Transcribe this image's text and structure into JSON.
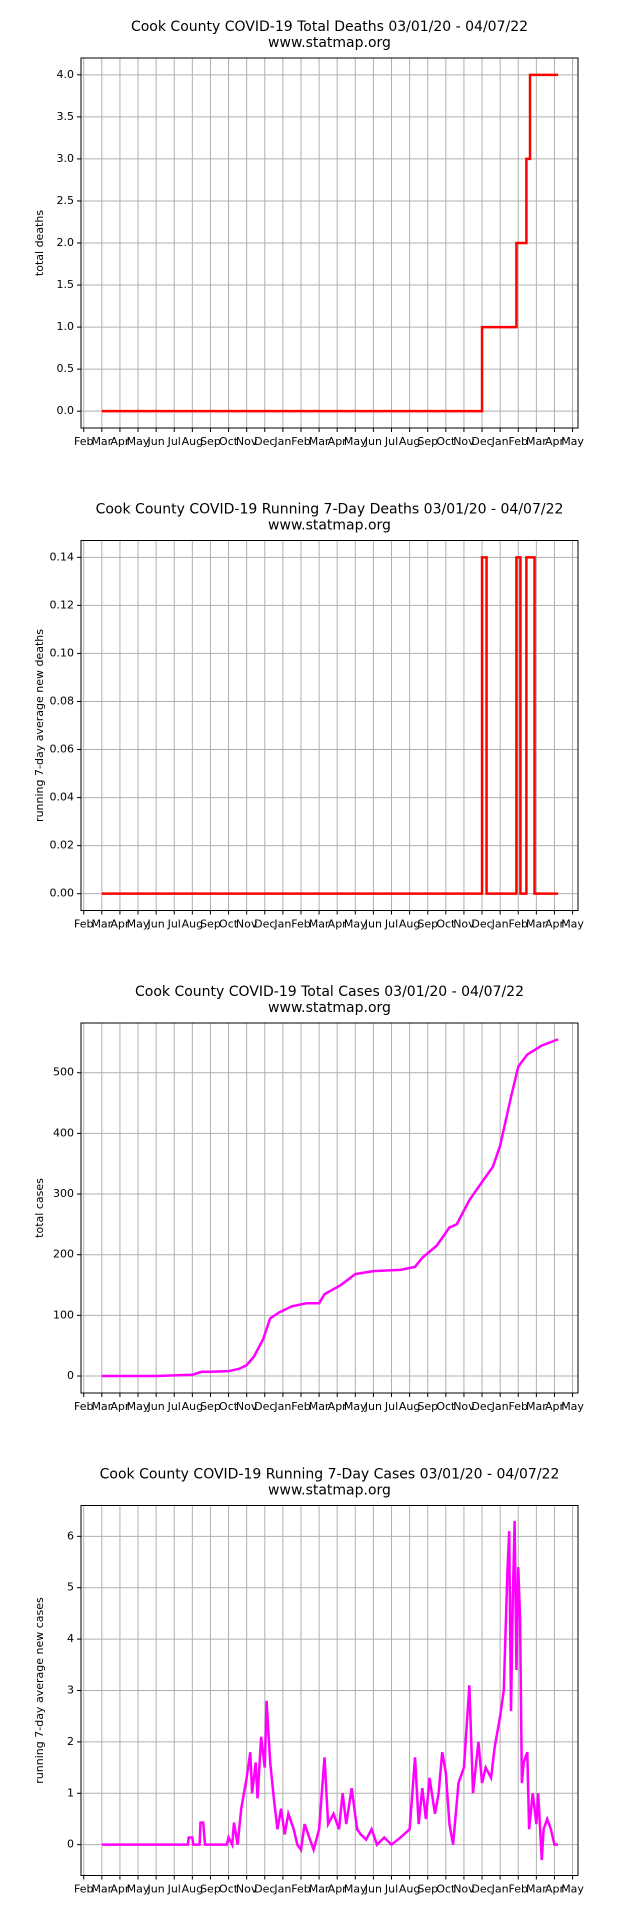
{
  "chart_data": [
    {
      "type": "line",
      "title": "Cook County COVID-19 Total Deaths 03/01/20 - 04/07/22",
      "subtitle": "www.statmap.org",
      "y_label": "total deaths",
      "grid": true,
      "xlim": [
        -0.15,
        27.3
      ],
      "xticks": [
        {
          "value": 0,
          "label": "Feb"
        },
        {
          "value": 1,
          "label": "Mar"
        },
        {
          "value": 2,
          "label": "Apr"
        },
        {
          "value": 3,
          "label": "May"
        },
        {
          "value": 4,
          "label": "Jun"
        },
        {
          "value": 5,
          "label": "Jul"
        },
        {
          "value": 6,
          "label": "Aug"
        },
        {
          "value": 7,
          "label": "Sep"
        },
        {
          "value": 8,
          "label": "Oct"
        },
        {
          "value": 9,
          "label": "Nov"
        },
        {
          "value": 10,
          "label": "Dec"
        },
        {
          "value": 11,
          "label": "Jan"
        },
        {
          "value": 12,
          "label": "Feb"
        },
        {
          "value": 13,
          "label": "Mar"
        },
        {
          "value": 14,
          "label": "Apr"
        },
        {
          "value": 15,
          "label": "May"
        },
        {
          "value": 16,
          "label": "Jun"
        },
        {
          "value": 17,
          "label": "Jul"
        },
        {
          "value": 18,
          "label": "Aug"
        },
        {
          "value": 19,
          "label": "Sep"
        },
        {
          "value": 20,
          "label": "Oct"
        },
        {
          "value": 21,
          "label": "Nov"
        },
        {
          "value": 22,
          "label": "Dec"
        },
        {
          "value": 23,
          "label": "Jan"
        },
        {
          "value": 24,
          "label": "Feb"
        },
        {
          "value": 25,
          "label": "Mar"
        },
        {
          "value": 26,
          "label": "Apr"
        },
        {
          "value": 27,
          "label": "May"
        }
      ],
      "ylim": [
        -0.2,
        4.2
      ],
      "yticks": [
        {
          "value": 0,
          "label": "0.0"
        },
        {
          "value": 0.5,
          "label": "0.5"
        },
        {
          "value": 1,
          "label": "1.0"
        },
        {
          "value": 1.5,
          "label": "1.5"
        },
        {
          "value": 2,
          "label": "2.0"
        },
        {
          "value": 2.5,
          "label": "2.5"
        },
        {
          "value": 3,
          "label": "3.0"
        },
        {
          "value": 3.5,
          "label": "3.5"
        },
        {
          "value": 4,
          "label": "4.0"
        }
      ],
      "series": [
        {
          "color": "#ff0000",
          "x": [
            1,
            22.0,
            22.0,
            23.9,
            23.9,
            24.45,
            24.45,
            24.65,
            24.65,
            26.2
          ],
          "values": [
            0,
            0,
            1,
            1,
            2,
            2,
            3,
            3,
            4,
            4
          ]
        }
      ]
    },
    {
      "type": "line",
      "title": "Cook County COVID-19 Running 7-Day Deaths 03/01/20 - 04/07/22",
      "subtitle": "www.statmap.org",
      "y_label": "running 7-day average new deaths",
      "grid": true,
      "xlim": [
        -0.15,
        27.3
      ],
      "xticks": [
        {
          "value": 0,
          "label": "Feb"
        },
        {
          "value": 1,
          "label": "Mar"
        },
        {
          "value": 2,
          "label": "Apr"
        },
        {
          "value": 3,
          "label": "May"
        },
        {
          "value": 4,
          "label": "Jun"
        },
        {
          "value": 5,
          "label": "Jul"
        },
        {
          "value": 6,
          "label": "Aug"
        },
        {
          "value": 7,
          "label": "Sep"
        },
        {
          "value": 8,
          "label": "Oct"
        },
        {
          "value": 9,
          "label": "Nov"
        },
        {
          "value": 10,
          "label": "Dec"
        },
        {
          "value": 11,
          "label": "Jan"
        },
        {
          "value": 12,
          "label": "Feb"
        },
        {
          "value": 13,
          "label": "Mar"
        },
        {
          "value": 14,
          "label": "Apr"
        },
        {
          "value": 15,
          "label": "May"
        },
        {
          "value": 16,
          "label": "Jun"
        },
        {
          "value": 17,
          "label": "Jul"
        },
        {
          "value": 18,
          "label": "Aug"
        },
        {
          "value": 19,
          "label": "Sep"
        },
        {
          "value": 20,
          "label": "Oct"
        },
        {
          "value": 21,
          "label": "Nov"
        },
        {
          "value": 22,
          "label": "Dec"
        },
        {
          "value": 23,
          "label": "Jan"
        },
        {
          "value": 24,
          "label": "Feb"
        },
        {
          "value": 25,
          "label": "Mar"
        },
        {
          "value": 26,
          "label": "Apr"
        },
        {
          "value": 27,
          "label": "May"
        }
      ],
      "ylim": [
        -0.007,
        0.147
      ],
      "yticks": [
        {
          "value": 0,
          "label": "0.00"
        },
        {
          "value": 0.02,
          "label": "0.02"
        },
        {
          "value": 0.04,
          "label": "0.04"
        },
        {
          "value": 0.06,
          "label": "0.06"
        },
        {
          "value": 0.08,
          "label": "0.08"
        },
        {
          "value": 0.1,
          "label": "0.10"
        },
        {
          "value": 0.12,
          "label": "0.12"
        },
        {
          "value": 0.14,
          "label": "0.14"
        }
      ],
      "series": [
        {
          "color": "#ff0000",
          "x": [
            1,
            22.0,
            22.0,
            22.25,
            22.25,
            23.9,
            23.9,
            24.12,
            24.12,
            24.45,
            24.45,
            24.9,
            24.9,
            26.2
          ],
          "values": [
            0,
            0,
            0.14,
            0.14,
            0,
            0,
            0.14,
            0.14,
            0,
            0,
            0.14,
            0.14,
            0,
            0
          ]
        }
      ]
    },
    {
      "type": "line",
      "title": "Cook County COVID-19 Total Cases 03/01/20 - 04/07/22",
      "subtitle": "www.statmap.org",
      "y_label": "total cases",
      "grid": true,
      "xlim": [
        -0.15,
        27.3
      ],
      "xticks": [
        {
          "value": 0,
          "label": "Feb"
        },
        {
          "value": 1,
          "label": "Mar"
        },
        {
          "value": 2,
          "label": "Apr"
        },
        {
          "value": 3,
          "label": "May"
        },
        {
          "value": 4,
          "label": "Jun"
        },
        {
          "value": 5,
          "label": "Jul"
        },
        {
          "value": 6,
          "label": "Aug"
        },
        {
          "value": 7,
          "label": "Sep"
        },
        {
          "value": 8,
          "label": "Oct"
        },
        {
          "value": 9,
          "label": "Nov"
        },
        {
          "value": 10,
          "label": "Dec"
        },
        {
          "value": 11,
          "label": "Jan"
        },
        {
          "value": 12,
          "label": "Feb"
        },
        {
          "value": 13,
          "label": "Mar"
        },
        {
          "value": 14,
          "label": "Apr"
        },
        {
          "value": 15,
          "label": "May"
        },
        {
          "value": 16,
          "label": "Jun"
        },
        {
          "value": 17,
          "label": "Jul"
        },
        {
          "value": 18,
          "label": "Aug"
        },
        {
          "value": 19,
          "label": "Sep"
        },
        {
          "value": 20,
          "label": "Oct"
        },
        {
          "value": 21,
          "label": "Nov"
        },
        {
          "value": 22,
          "label": "Dec"
        },
        {
          "value": 23,
          "label": "Jan"
        },
        {
          "value": 24,
          "label": "Feb"
        },
        {
          "value": 25,
          "label": "Mar"
        },
        {
          "value": 26,
          "label": "Apr"
        },
        {
          "value": 27,
          "label": "May"
        }
      ],
      "ylim": [
        -28,
        582
      ],
      "yticks": [
        0,
        100,
        200,
        300,
        400,
        500
      ],
      "series": [
        {
          "color": "#ff00ff",
          "x": [
            1,
            4,
            5,
            6,
            6.5,
            7,
            8,
            8.6,
            9,
            9.4,
            9.9,
            10.3,
            10.8,
            11.5,
            12.3,
            13,
            13.3,
            14.2,
            15,
            16,
            17.5,
            18.3,
            18.7,
            19.5,
            20.2,
            20.6,
            21.3,
            22,
            22.6,
            23,
            23.3,
            23.6,
            24,
            24.5,
            25.3,
            26.2
          ],
          "values": [
            0,
            0,
            1,
            2,
            7,
            7,
            8,
            12,
            18,
            32,
            60,
            95,
            105,
            115,
            120,
            120,
            135,
            150,
            168,
            173,
            175,
            180,
            195,
            215,
            245,
            250,
            290,
            320,
            345,
            380,
            420,
            460,
            510,
            530,
            545,
            555
          ]
        }
      ]
    },
    {
      "type": "line",
      "title": "Cook County COVID-19 Running 7-Day Cases 03/01/20 - 04/07/22",
      "subtitle": "www.statmap.org",
      "y_label": "running 7-day average new cases",
      "grid": true,
      "xlim": [
        -0.15,
        27.3
      ],
      "xticks": [
        {
          "value": 0,
          "label": "Feb"
        },
        {
          "value": 1,
          "label": "Mar"
        },
        {
          "value": 2,
          "label": "Apr"
        },
        {
          "value": 3,
          "label": "May"
        },
        {
          "value": 4,
          "label": "Jun"
        },
        {
          "value": 5,
          "label": "Jul"
        },
        {
          "value": 6,
          "label": "Aug"
        },
        {
          "value": 7,
          "label": "Sep"
        },
        {
          "value": 8,
          "label": "Oct"
        },
        {
          "value": 9,
          "label": "Nov"
        },
        {
          "value": 10,
          "label": "Dec"
        },
        {
          "value": 11,
          "label": "Jan"
        },
        {
          "value": 12,
          "label": "Feb"
        },
        {
          "value": 13,
          "label": "Mar"
        },
        {
          "value": 14,
          "label": "Apr"
        },
        {
          "value": 15,
          "label": "May"
        },
        {
          "value": 16,
          "label": "Jun"
        },
        {
          "value": 17,
          "label": "Jul"
        },
        {
          "value": 18,
          "label": "Aug"
        },
        {
          "value": 19,
          "label": "Sep"
        },
        {
          "value": 20,
          "label": "Oct"
        },
        {
          "value": 21,
          "label": "Nov"
        },
        {
          "value": 22,
          "label": "Dec"
        },
        {
          "value": 23,
          "label": "Jan"
        },
        {
          "value": 24,
          "label": "Feb"
        },
        {
          "value": 25,
          "label": "Mar"
        },
        {
          "value": 26,
          "label": "Apr"
        },
        {
          "value": 27,
          "label": "May"
        }
      ],
      "ylim": [
        -0.6,
        6.6
      ],
      "yticks": [
        0,
        1,
        2,
        3,
        4,
        5,
        6
      ],
      "series": [
        {
          "color": "#ff00ff",
          "x": [
            1,
            5.75,
            5.8,
            6.0,
            6.05,
            6.4,
            6.45,
            6.6,
            6.7,
            7.9,
            8.0,
            8.2,
            8.3,
            8.5,
            8.7,
            9.0,
            9.2,
            9.3,
            9.5,
            9.6,
            9.8,
            10.0,
            10.1,
            10.3,
            10.5,
            10.7,
            10.9,
            11.1,
            11.3,
            11.6,
            11.8,
            12.0,
            12.2,
            12.5,
            12.7,
            13.0,
            13.3,
            13.5,
            13.8,
            14.1,
            14.3,
            14.5,
            14.8,
            15.1,
            15.3,
            15.6,
            15.9,
            16.2,
            16.6,
            17.0,
            17.5,
            18.0,
            18.3,
            18.5,
            18.7,
            18.9,
            19.1,
            19.4,
            19.6,
            19.8,
            20.0,
            20.2,
            20.4,
            20.7,
            21.0,
            21.3,
            21.5,
            21.8,
            22.0,
            22.2,
            22.5,
            22.7,
            23.0,
            23.2,
            23.4,
            23.5,
            23.6,
            23.7,
            23.8,
            23.9,
            24.0,
            24.1,
            24.2,
            24.3,
            24.5,
            24.6,
            24.8,
            25.0,
            25.1,
            25.3,
            25.4,
            25.6,
            25.8,
            26.0,
            26.2
          ],
          "values": [
            0,
            0,
            0.14,
            0.14,
            0,
            0,
            0.43,
            0.43,
            0,
            0,
            0.14,
            0,
            0.43,
            0,
            0.7,
            1.3,
            1.8,
            1.0,
            1.6,
            0.9,
            2.1,
            1.5,
            2.8,
            1.6,
            0.9,
            0.3,
            0.7,
            0.2,
            0.6,
            0.3,
            0,
            -0.1,
            0.4,
            0.1,
            -0.1,
            0.3,
            1.7,
            0.4,
            0.6,
            0.3,
            1.0,
            0.4,
            1.1,
            0.3,
            0.2,
            0.1,
            0.3,
            0,
            0.14,
            0,
            0.14,
            0.3,
            1.7,
            0.4,
            1.1,
            0.5,
            1.3,
            0.6,
            1.0,
            1.8,
            1.4,
            0.4,
            0,
            1.2,
            1.5,
            3.1,
            1.0,
            2.0,
            1.2,
            1.5,
            1.3,
            1.9,
            2.5,
            3.0,
            5.3,
            6.1,
            2.6,
            4.8,
            6.3,
            3.4,
            5.4,
            4.4,
            1.2,
            1.6,
            1.8,
            0.3,
            1.0,
            0.4,
            1.0,
            -0.3,
            0.3,
            0.5,
            0.3,
            0,
            0
          ]
        }
      ]
    }
  ]
}
